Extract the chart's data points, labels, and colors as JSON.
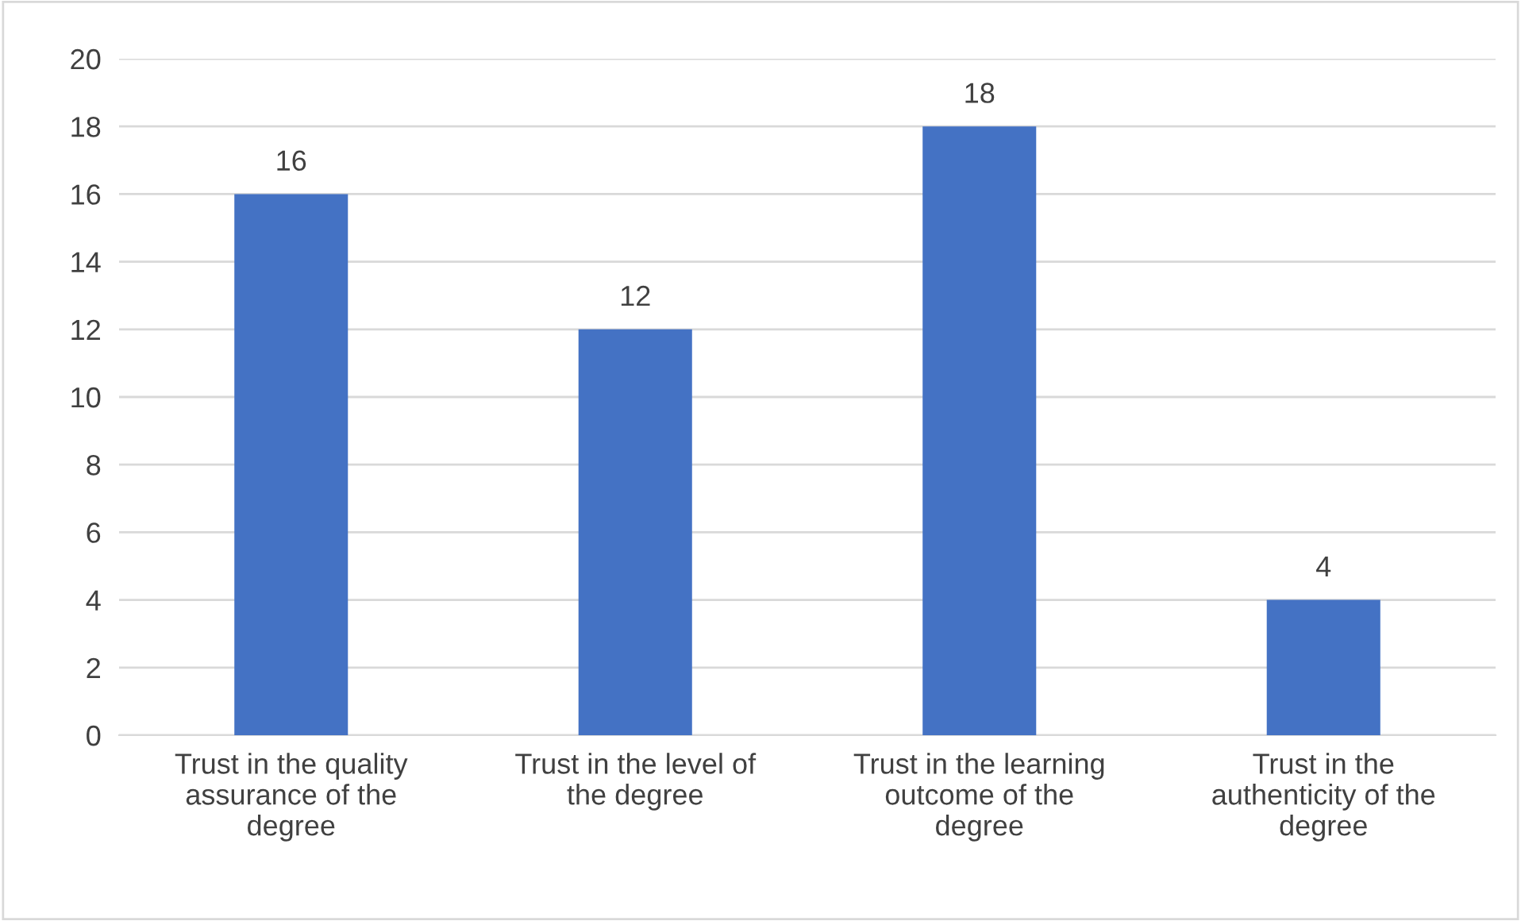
{
  "chart_data": {
    "type": "bar",
    "categories": [
      "Trust in the quality\nassurance of the\ndegree",
      "Trust in the level of\nthe degree",
      "Trust in the learning\noutcome of the\ndegree",
      "Trust in the\nauthenticity of the\ndegree"
    ],
    "values": [
      16,
      12,
      18,
      4
    ],
    "color": "#4472c4",
    "ylim": [
      0,
      20
    ],
    "yticks": [
      0,
      2,
      4,
      6,
      8,
      10,
      12,
      14,
      16,
      18,
      20
    ],
    "grid": "y",
    "data_labels": true
  }
}
